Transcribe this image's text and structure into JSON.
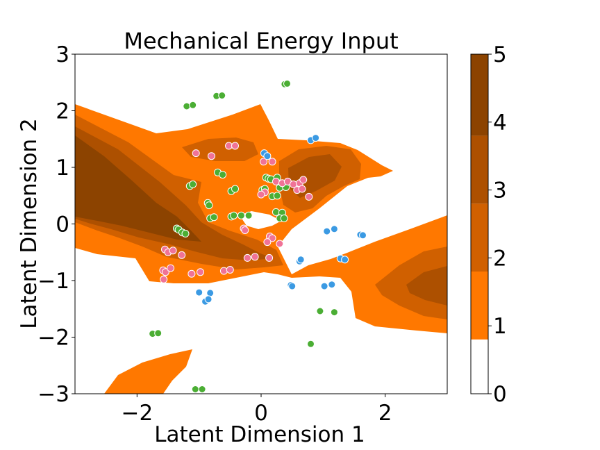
{
  "chart_data": {
    "type": "contour-scatter",
    "title": "Mechanical Energy Input",
    "xlabel": "Latent Dimension 1",
    "ylabel": "Latent Dimension 2",
    "xlim": [
      -3,
      3
    ],
    "ylim": [
      -3,
      3
    ],
    "xticks": [
      {
        "v": -2,
        "label": "−2"
      },
      {
        "v": 0,
        "label": "0"
      },
      {
        "v": 2,
        "label": "2"
      }
    ],
    "yticks": [
      {
        "v": -3,
        "label": "−3"
      },
      {
        "v": -2,
        "label": "−2"
      },
      {
        "v": -1,
        "label": "−1"
      },
      {
        "v": 0,
        "label": "0"
      },
      {
        "v": 1,
        "label": "1"
      },
      {
        "v": 2,
        "label": "2"
      },
      {
        "v": 3,
        "label": "3"
      }
    ],
    "colorbar": {
      "range": [
        0,
        5
      ],
      "ticks": [
        {
          "v": 0,
          "label": "0"
        },
        {
          "v": 1,
          "label": "1"
        },
        {
          "v": 2,
          "label": "2"
        },
        {
          "v": 3,
          "label": "3"
        },
        {
          "v": 4,
          "label": "4"
        },
        {
          "v": 5,
          "label": "5"
        }
      ],
      "levels": [
        {
          "from": 0.0,
          "to": 0.8,
          "color": "#ffffff"
        },
        {
          "from": 0.8,
          "to": 1.8,
          "color": "#ff7800"
        },
        {
          "from": 1.8,
          "to": 2.8,
          "color": "#d06000"
        },
        {
          "from": 2.8,
          "to": 3.8,
          "color": "#ad5000"
        },
        {
          "from": 3.8,
          "to": 5.0,
          "color": "#8c4300"
        }
      ]
    },
    "grid": false,
    "series": [
      {
        "color": "#4bae34",
        "points": [
          [
            0.38,
            2.47
          ],
          [
            0.42,
            2.48
          ],
          [
            -0.72,
            2.26
          ],
          [
            -0.63,
            2.27
          ],
          [
            -1.2,
            2.08
          ],
          [
            -1.1,
            2.1
          ],
          [
            -0.7,
            0.91
          ],
          [
            -0.62,
            0.87
          ],
          [
            -1.15,
            0.67
          ],
          [
            -1.1,
            0.7
          ],
          [
            -0.48,
            0.58
          ],
          [
            -0.42,
            0.62
          ],
          [
            0.08,
            0.82
          ],
          [
            0.12,
            0.8
          ],
          [
            0.16,
            0.79
          ],
          [
            0.26,
            0.82
          ],
          [
            0.02,
            0.6
          ],
          [
            0.06,
            0.62
          ],
          [
            0.3,
            0.64
          ],
          [
            0.4,
            0.65
          ],
          [
            0.18,
            0.49
          ],
          [
            0.26,
            0.5
          ],
          [
            -0.86,
            0.37
          ],
          [
            -0.84,
            0.33
          ],
          [
            0.24,
            0.21
          ],
          [
            0.34,
            0.2
          ],
          [
            0.3,
            0.1
          ],
          [
            0.37,
            0.1
          ],
          [
            -0.82,
            0.1
          ],
          [
            -0.76,
            0.12
          ],
          [
            -0.48,
            0.13
          ],
          [
            -0.44,
            0.15
          ],
          [
            -0.32,
            0.15
          ],
          [
            -0.2,
            0.15
          ],
          [
            -1.36,
            -0.08
          ],
          [
            -1.33,
            -0.1
          ],
          [
            -1.27,
            -0.15
          ],
          [
            -1.22,
            -0.17
          ],
          [
            0.95,
            -1.54
          ],
          [
            1.18,
            -1.56
          ],
          [
            0.8,
            -2.12
          ],
          [
            -1.75,
            -1.94
          ],
          [
            -1.66,
            -1.93
          ],
          [
            -1.06,
            -2.92
          ],
          [
            -0.95,
            -2.92
          ]
        ]
      },
      {
        "color": "#f07397",
        "points": [
          [
            -1.05,
            1.25
          ],
          [
            -0.8,
            1.2
          ],
          [
            -0.52,
            1.38
          ],
          [
            -0.42,
            1.38
          ],
          [
            0.04,
            1.1
          ],
          [
            0.18,
            1.1
          ],
          [
            0.24,
            0.75
          ],
          [
            0.34,
            0.72
          ],
          [
            0.43,
            0.75
          ],
          [
            0.52,
            0.7
          ],
          [
            0.62,
            0.72
          ],
          [
            0.68,
            0.78
          ],
          [
            0.58,
            0.6
          ],
          [
            0.66,
            0.62
          ],
          [
            0.77,
            0.48
          ],
          [
            0.06,
            0.56
          ],
          [
            0.0,
            0.52
          ],
          [
            -0.28,
            -0.08
          ],
          [
            -0.26,
            -0.11
          ],
          [
            0.14,
            -0.22
          ],
          [
            0.18,
            -0.25
          ],
          [
            0.1,
            -0.32
          ],
          [
            0.3,
            -0.35
          ],
          [
            -1.55,
            -0.45
          ],
          [
            -1.5,
            -0.5
          ],
          [
            -1.42,
            -0.47
          ],
          [
            -1.28,
            -0.55
          ],
          [
            -1.58,
            -0.82
          ],
          [
            -1.54,
            -0.85
          ],
          [
            -1.46,
            -0.78
          ],
          [
            -1.57,
            -0.98
          ],
          [
            -1.12,
            -0.88
          ],
          [
            -0.98,
            -0.85
          ],
          [
            -0.6,
            -0.83
          ],
          [
            -0.5,
            -0.81
          ],
          [
            -0.22,
            -0.6
          ],
          [
            -0.1,
            -0.58
          ],
          [
            0.13,
            -0.6
          ]
        ]
      },
      {
        "color": "#3b9ae3",
        "points": [
          [
            0.8,
            1.48
          ],
          [
            0.88,
            1.52
          ],
          [
            0.05,
            1.25
          ],
          [
            0.1,
            1.2
          ],
          [
            1.06,
            -0.13
          ],
          [
            1.18,
            -0.09
          ],
          [
            1.6,
            -0.19
          ],
          [
            1.64,
            -0.2
          ],
          [
            1.28,
            -0.61
          ],
          [
            1.35,
            -0.63
          ],
          [
            0.62,
            -0.66
          ],
          [
            0.64,
            -0.63
          ],
          [
            0.48,
            -1.08
          ],
          [
            0.5,
            -1.1
          ],
          [
            1.02,
            -1.1
          ],
          [
            1.14,
            -1.07
          ],
          [
            -1.0,
            -1.21
          ],
          [
            -0.82,
            -1.22
          ],
          [
            -0.9,
            -1.37
          ],
          [
            -0.85,
            -1.33
          ]
        ]
      }
    ]
  }
}
